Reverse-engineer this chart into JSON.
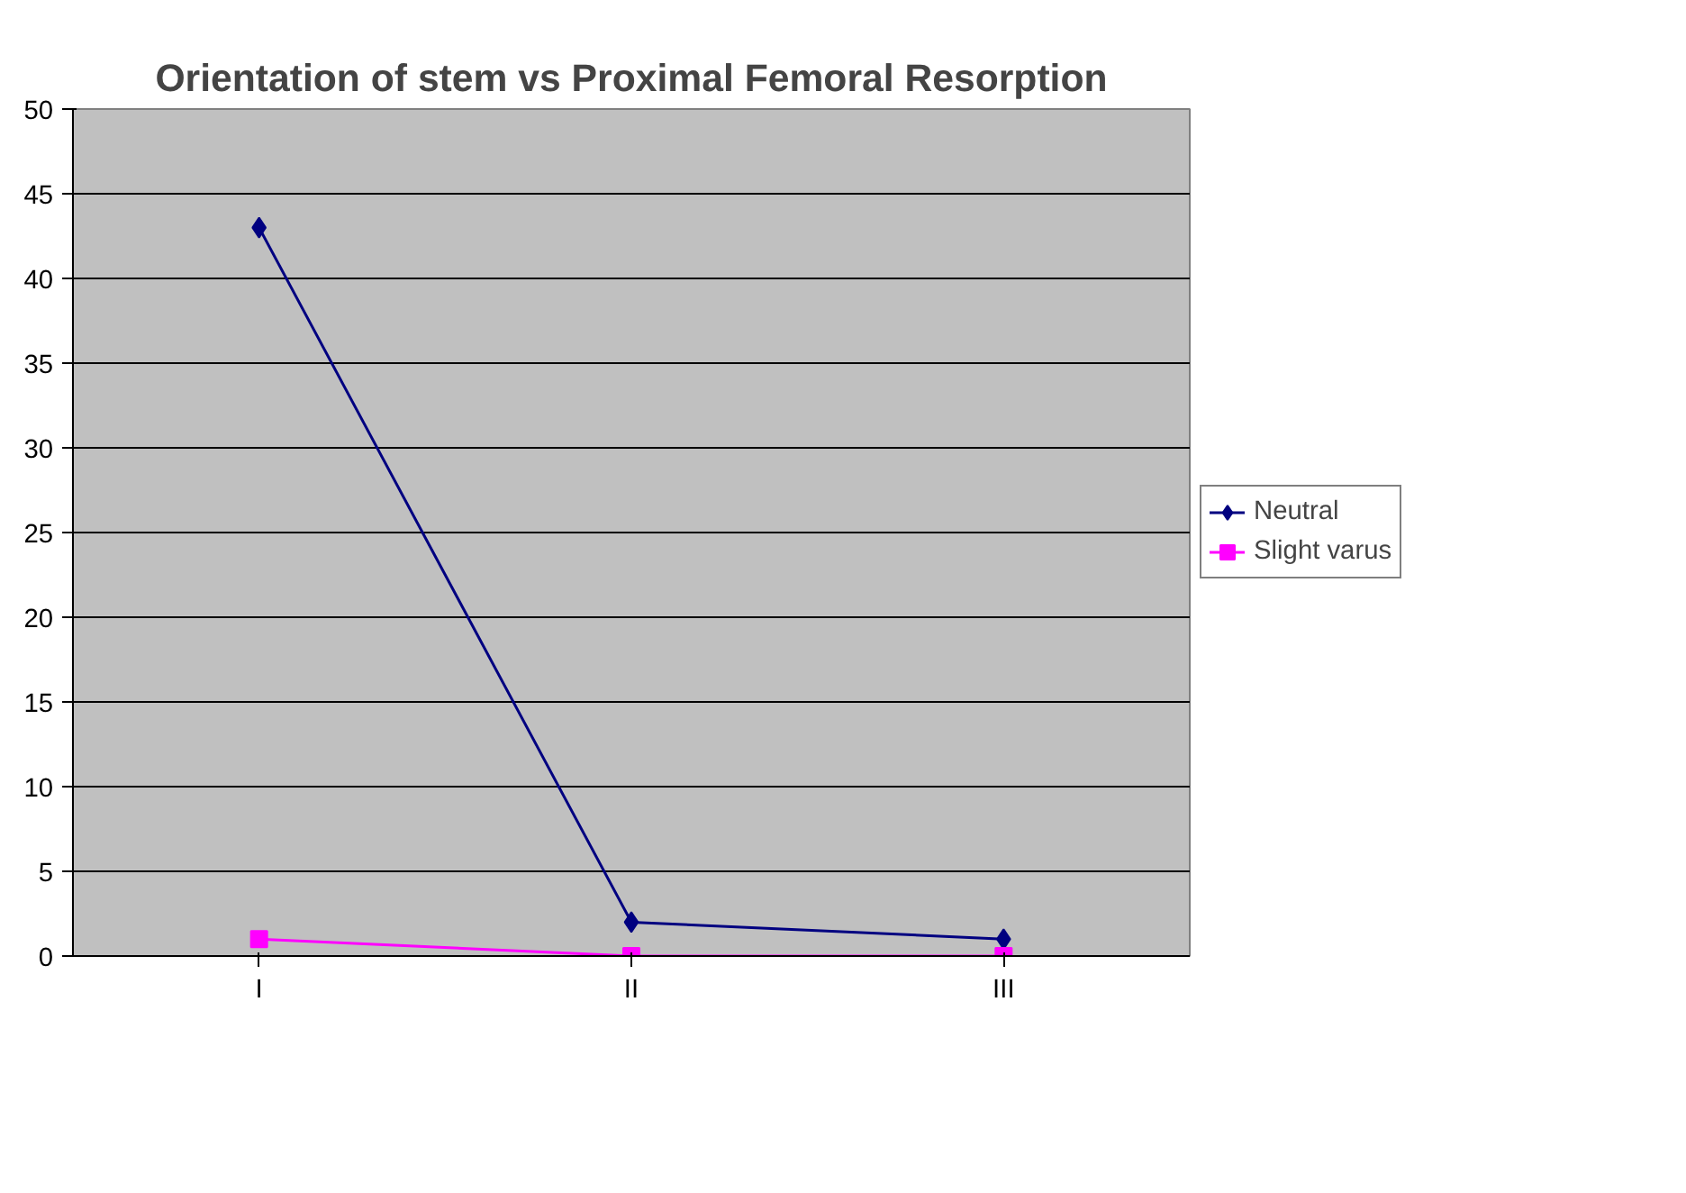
{
  "chart_data": {
    "type": "line",
    "title": "Orientation of stem vs Proximal Femoral Resorption",
    "categories": [
      "I",
      "II",
      "III"
    ],
    "series": [
      {
        "name": "Neutral",
        "color": "#000080",
        "values": [
          43,
          2,
          1
        ],
        "marker": "diamond"
      },
      {
        "name": "Slight varus",
        "color": "#ff00ff",
        "values": [
          1,
          0,
          0
        ],
        "marker": "square"
      }
    ],
    "ylim": [
      0,
      50
    ],
    "yticks": [
      0,
      5,
      10,
      15,
      20,
      25,
      30,
      35,
      40,
      45,
      50
    ],
    "grid": "y",
    "legend": "right",
    "line_style": "solid"
  }
}
